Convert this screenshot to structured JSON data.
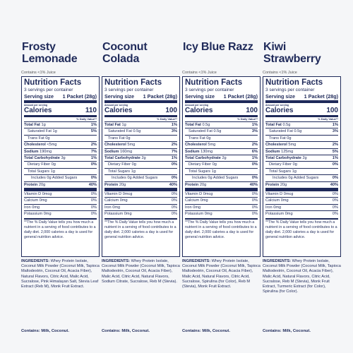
{
  "header": {
    "contains_juice": "Contains <1% Juice"
  },
  "label_text": {
    "title": "Nutrition Facts",
    "serving_size": "Serving size",
    "amount_per_serving": "Amount per serving",
    "calories": "Calories",
    "daily_value": "% Daily Value**",
    "footnote": "**The % Daily Value tells you how much a nutrient in a serving of food contributes to a daily diet. 2,000 calories a day is used for general nutrition advice.",
    "ingredients": "INGREDIENTS:"
  },
  "nutrients": [
    {
      "name": "Total Fat",
      "bold": true,
      "indent": 0
    },
    {
      "name": "Saturated Fat",
      "bold": false,
      "indent": 1
    },
    {
      "name": "Trans Fat",
      "bold": false,
      "indent": 1
    },
    {
      "name": "Cholesterol",
      "bold": true,
      "indent": 0
    },
    {
      "name": "Sodium",
      "bold": true,
      "indent": 0
    },
    {
      "name": "Total Carbohydrate",
      "bold": true,
      "indent": 0
    },
    {
      "name": "Dietary Fiber",
      "bold": false,
      "indent": 1
    },
    {
      "name": "Total Sugars",
      "bold": false,
      "indent": 1
    },
    {
      "name": "Includes",
      "bold": false,
      "indent": 2
    },
    {
      "name": "Protein",
      "bold": true,
      "indent": 0
    }
  ],
  "vitamins": [
    "Vitamin D",
    "Calcium",
    "Iron",
    "Potassium"
  ],
  "products": [
    {
      "name": "Frosty Lemonade",
      "juice": true,
      "servings": "3 servings per container",
      "serving_size": "1 Packet (28g)",
      "calories": 110,
      "amounts": [
        "1g",
        "1g",
        "0g",
        "<5mg",
        "190mg",
        "3g",
        "0g",
        "1g",
        "0g Added Sugars",
        "20g"
      ],
      "dv": [
        "1%",
        "5%",
        null,
        "2%",
        "7%",
        "1%",
        "0%",
        null,
        "0%",
        "40%"
      ],
      "vitamin_amounts": [
        "0mcg",
        "0mg",
        "0mg",
        "0mg"
      ],
      "vitamin_dv": [
        "0%",
        "0%",
        "0%",
        "0%"
      ],
      "ingredients": "Whey Protein Isolate, Coconut Milk Powder (Coconut Milk, Tapioca Maltodextrin, Coconut Oil, Acacia Fiber), Natural Flavors, Citric Acid, Malic Acid, Sucralose, Pink Himalayan Salt, Stevia Leaf Extract (Reb M), Monk Fruit Extract.",
      "contains": "Contains: Milk, Coconut."
    },
    {
      "name": "Coconut Colada",
      "juice": false,
      "servings": "3 servings per container",
      "serving_size": "1 Packet (28g)",
      "calories": 100,
      "amounts": [
        "1g",
        "0.5g",
        "0g",
        "5mg",
        "160mg",
        "2g",
        "0g",
        "1g",
        "0g Added Sugars",
        "20g"
      ],
      "dv": [
        "1%",
        "3%",
        null,
        "2%",
        "7%",
        "1%",
        "0%",
        null,
        "0%",
        "40%"
      ],
      "vitamin_amounts": [
        "0mcg",
        "0mg",
        "0mg",
        "0mg"
      ],
      "vitamin_dv": [
        "0%",
        "0%",
        "0%",
        "0%"
      ],
      "ingredients": "Whey Protein Isolate, Coconut Milk Powder (Coconut Milk, Tapioca Maltodextrin, Coconut Oil, Acacia Fiber), Malic Acid, Citric Acid, Natural Flavors, Sodium Citrate, Sucralose, Reb M (Stevia).",
      "contains": "Contains: Milk, Coconut."
    },
    {
      "name": "Icy Blue Razz",
      "juice": true,
      "servings": "3 servings per container",
      "serving_size": "1 Packet (28g)",
      "calories": 100,
      "amounts": [
        "0.5g",
        "0.5g",
        "0g",
        "5mg",
        "130mg",
        "2g",
        "0g",
        "1g",
        "0g Added Sugars",
        "20g"
      ],
      "dv": [
        "1%",
        "3%",
        null,
        "2%",
        "6%",
        "1%",
        "0%",
        null,
        "0%",
        "40%"
      ],
      "vitamin_amounts": [
        "0mcg",
        "0mg",
        "0mg",
        "0mg"
      ],
      "vitamin_dv": [
        "0%",
        "0%",
        "0%",
        "0%"
      ],
      "ingredients": "Whey Protein Isolate, Coconut Milk Powder (Coconut Milk, Tapioca Maltodextrin, Coconut Oil, Acacia Fiber), Malic Acid, Natural Flavors, Citric Acid, Sucralose, Spirulina (for Color), Reb M (Stevia), Monk Fruit Extract.",
      "contains": "Contains: Milk, Coconut."
    },
    {
      "name": "Kiwi Strawberry",
      "juice": true,
      "servings": "3 servings per container",
      "serving_size": "1 Packet (28g)",
      "calories": 100,
      "amounts": [
        "0.5g",
        "0.5g",
        "0g",
        "5mg",
        "125mg",
        "2g",
        "0g",
        "1g",
        "0g Added Sugars",
        "20g"
      ],
      "dv": [
        "1%",
        "3%",
        null,
        "2%",
        "5%",
        "1%",
        "0%",
        null,
        "0%",
        "40%"
      ],
      "vitamin_amounts": [
        "0mcg",
        "0mg",
        "0mg",
        "0mg"
      ],
      "vitamin_dv": [
        "0%",
        "0%",
        "0%",
        "0%"
      ],
      "ingredients": "Whey Protein Isolate, Coconut Milk Powder (Coconut Milk, Tapioca Maltodextrin, Coconut Oil, Acacia Fiber), Malic Acid, Natural Flavors, Citric Acid, Sucralose, Reb M (Stevia), Monk Fruit Extract, Turmeric Extract (for Color), Spirulina (for Color).",
      "contains": "Contains: Milk, Coconut."
    }
  ]
}
